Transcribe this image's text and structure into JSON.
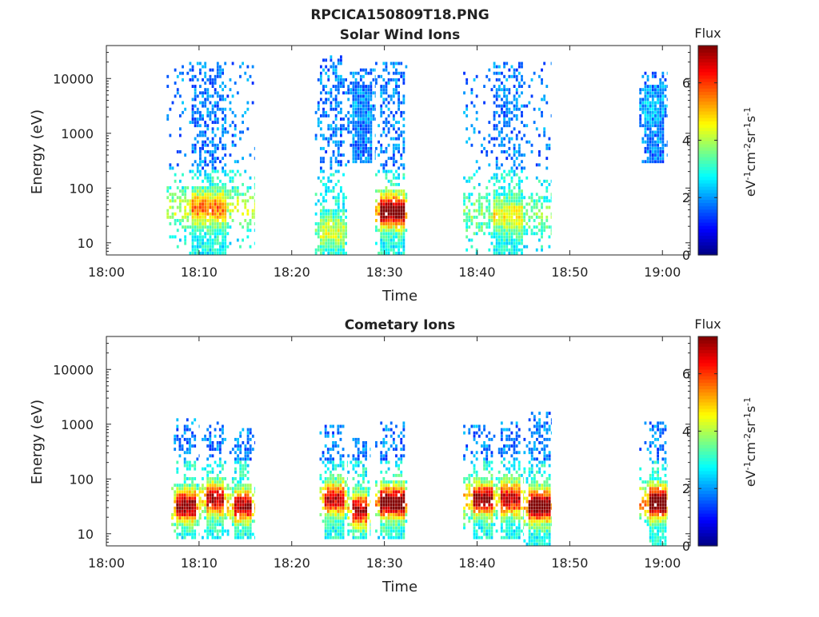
{
  "figure_title": "RPCICA150809T18.PNG",
  "colors": {
    "colormap": [
      "#00007f",
      "#0000ff",
      "#007fff",
      "#00ffff",
      "#7fff7f",
      "#ffff00",
      "#ff7f00",
      "#ff0000",
      "#7f0000"
    ]
  },
  "chart_data": [
    {
      "type": "heatmap",
      "title": "Solar Wind Ions",
      "xlabel": "Time",
      "ylabel": "Energy (eV)",
      "xlim": [
        "18:00",
        "19:03"
      ],
      "x_ticks": [
        "18:00",
        "18:10",
        "18:20",
        "18:30",
        "18:40",
        "18:50",
        "19:00"
      ],
      "ylim": [
        6,
        40000
      ],
      "yscale": "log",
      "y_ticks": [
        "10",
        "100",
        "1000",
        "10000"
      ],
      "colorbar": {
        "title": "Flux",
        "label": "eV-1cm-2sr-1s-1",
        "range": [
          0,
          7.3
        ],
        "ticks": [
          "0",
          "2",
          "4",
          "6"
        ]
      },
      "bursts": [
        {
          "start": "18:06.5",
          "end": "18:16",
          "core_start": "18:09",
          "core_end": "18:12.8",
          "emin": 6,
          "emax": 20000,
          "peak_energy": 40,
          "peak_flux": 4.8
        },
        {
          "start": "18:22.5",
          "end": "18:26",
          "core_start": "18:23",
          "core_end": "18:25.5",
          "emin": 6,
          "emax": 25000,
          "peak_energy": 15,
          "peak_flux": 3.5
        },
        {
          "start": "18:26",
          "end": "18:29",
          "core_start": "18:26.5",
          "core_end": "18:28.5",
          "emin": 300,
          "emax": 15000,
          "peak_energy": 3000,
          "peak_flux": 2.2
        },
        {
          "start": "18:29",
          "end": "18:32.5",
          "core_start": "18:29.5",
          "core_end": "18:32",
          "emin": 6,
          "emax": 20000,
          "peak_energy": 35,
          "peak_flux": 7.0
        },
        {
          "start": "18:38.5",
          "end": "18:48",
          "core_start": "18:41.5",
          "core_end": "18:44.8",
          "emin": 6,
          "emax": 20000,
          "peak_energy": 30,
          "peak_flux": 3.8
        },
        {
          "start": "18:57.5",
          "end": "19:00.5",
          "core_start": "18:58",
          "core_end": "19:00",
          "emin": 300,
          "emax": 12000,
          "peak_energy": 3000,
          "peak_flux": 2.5
        }
      ]
    },
    {
      "type": "heatmap",
      "title": "Cometary Ions",
      "xlabel": "Time",
      "ylabel": "Energy (eV)",
      "xlim": [
        "18:00",
        "19:03"
      ],
      "x_ticks": [
        "18:00",
        "18:10",
        "18:20",
        "18:30",
        "18:40",
        "18:50",
        "19:00"
      ],
      "ylim": [
        6,
        40000
      ],
      "yscale": "log",
      "y_ticks": [
        "10",
        "100",
        "1000",
        "10000"
      ],
      "colorbar": {
        "title": "Flux",
        "label": "eV-1cm-2sr-1s-1",
        "range": [
          0,
          7.3
        ],
        "ticks": [
          "0",
          "2",
          "4",
          "6"
        ]
      },
      "bursts": [
        {
          "start": "18:07",
          "end": "18:10",
          "core_start": "18:07.5",
          "core_end": "18:09.5",
          "emin": 8,
          "emax": 1200,
          "peak_energy": 30,
          "peak_flux": 6.6
        },
        {
          "start": "18:10",
          "end": "18:13",
          "core_start": "18:10.8",
          "core_end": "18:12.5",
          "emin": 8,
          "emax": 1000,
          "peak_energy": 40,
          "peak_flux": 6.2
        },
        {
          "start": "18:13",
          "end": "18:16",
          "core_start": "18:13.8",
          "core_end": "18:15.5",
          "emin": 8,
          "emax": 800,
          "peak_energy": 30,
          "peak_flux": 6.3
        },
        {
          "start": "18:23",
          "end": "18:26",
          "core_start": "18:23.5",
          "core_end": "18:25.5",
          "emin": 8,
          "emax": 900,
          "peak_energy": 40,
          "peak_flux": 6.0
        },
        {
          "start": "18:26",
          "end": "18:28.5",
          "core_start": "18:26.5",
          "core_end": "18:28",
          "emin": 8,
          "emax": 500,
          "peak_energy": 25,
          "peak_flux": 6.2
        },
        {
          "start": "18:29",
          "end": "18:32.5",
          "core_start": "18:29.5",
          "core_end": "18:32",
          "emin": 8,
          "emax": 1000,
          "peak_energy": 35,
          "peak_flux": 7.0
        },
        {
          "start": "18:38.5",
          "end": "18:42",
          "core_start": "18:39.5",
          "core_end": "18:41.5",
          "emin": 8,
          "emax": 900,
          "peak_energy": 40,
          "peak_flux": 6.5
        },
        {
          "start": "18:42",
          "end": "18:45",
          "core_start": "18:42.5",
          "core_end": "18:44.5",
          "emin": 8,
          "emax": 1000,
          "peak_energy": 40,
          "peak_flux": 6.0
        },
        {
          "start": "18:45",
          "end": "18:48",
          "core_start": "18:45.5",
          "core_end": "18:47.8",
          "emin": 6,
          "emax": 1500,
          "peak_energy": 30,
          "peak_flux": 7.0
        },
        {
          "start": "18:57.5",
          "end": "19:00.5",
          "core_start": "18:58.5",
          "core_end": "19:00.2",
          "emin": 6,
          "emax": 1000,
          "peak_energy": 35,
          "peak_flux": 7.2
        }
      ]
    }
  ]
}
